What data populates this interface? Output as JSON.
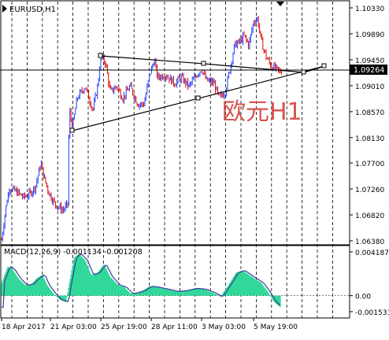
{
  "window": {
    "symbol_label": "EURUSD,H1"
  },
  "price_panel": {
    "current_price": "1.09264",
    "annotation": "欧元H1",
    "y_ticks": [
      "1.10330",
      "1.09890",
      "1.09450",
      "1.09010",
      "1.08570",
      "1.08130",
      "1.07700",
      "1.07260",
      "1.06820",
      "1.06380"
    ]
  },
  "macd_panel": {
    "label": "MACD(12,26,9) -0.001134 -0.001208",
    "y_ticks": [
      "0.004187",
      "0.00",
      "-0.001531"
    ]
  },
  "time_axis": {
    "labels": [
      "18 Apr 2017",
      "21 Apr 03:00",
      "25 Apr 19:00",
      "28 Apr 11:00",
      "3 May 03:00",
      "5 May 19:00"
    ]
  },
  "colors": {
    "bull_candle": "#1e3cff",
    "bear_candle": "#e00000",
    "annotation_text": "#d9534f",
    "macd_histogram": "#32d89a",
    "macd_signal": "#3a3aa0",
    "price_tag_bg": "#000000"
  },
  "chart_data": [
    {
      "type": "line",
      "title": "EURUSD,H1",
      "series": [
        {
          "name": "EURUSD,H1",
          "x": [
            "18 Apr 2017",
            "21 Apr 03:00",
            "25 Apr 19:00",
            "28 Apr 11:00",
            "3 May 03:00",
            "5 May 19:00"
          ],
          "values": [
            1.0665,
            1.0695,
            1.0965,
            1.088,
            1.0915,
            1.0926
          ]
        }
      ],
      "ylim": [
        1.0625,
        1.1043
      ],
      "grid": true
    },
    {
      "type": "area",
      "title": "MACD(12,26,9) -0.001134 -0.001208",
      "ylim": [
        -0.00175,
        0.0043
      ]
    }
  ]
}
